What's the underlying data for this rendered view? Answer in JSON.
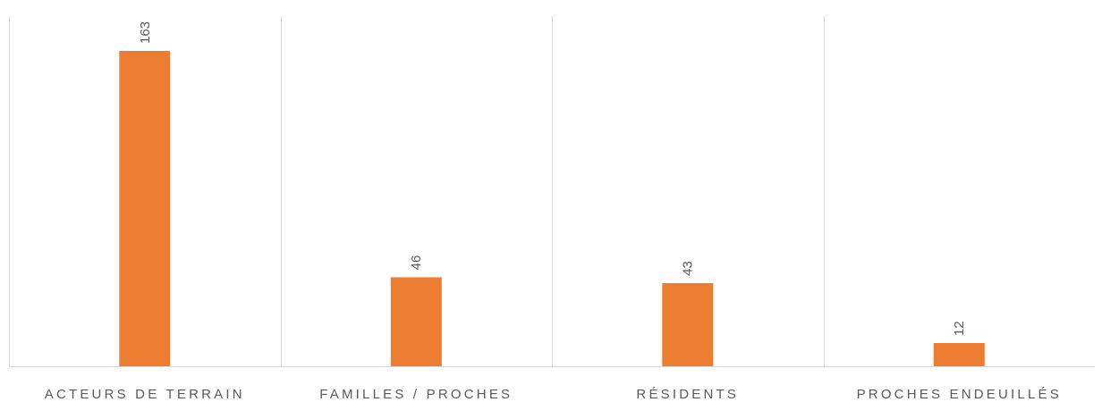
{
  "chart_data": {
    "type": "bar",
    "categories": [
      "ACTEURS DE TERRAIN",
      "FAMILLES / PROCHES",
      "RÉSIDENTS",
      "PROCHES ENDEUILLÉS"
    ],
    "values": [
      163,
      46,
      43,
      12
    ],
    "title": "",
    "xlabel": "",
    "ylabel": "",
    "ylim": [
      0,
      180
    ],
    "grid": "vertical separators",
    "legend": "none",
    "data_labels": "rotated, above bars",
    "bar_color": "#ed7d31",
    "grid_color": "#d9d9d9",
    "label_color": "#595959"
  }
}
